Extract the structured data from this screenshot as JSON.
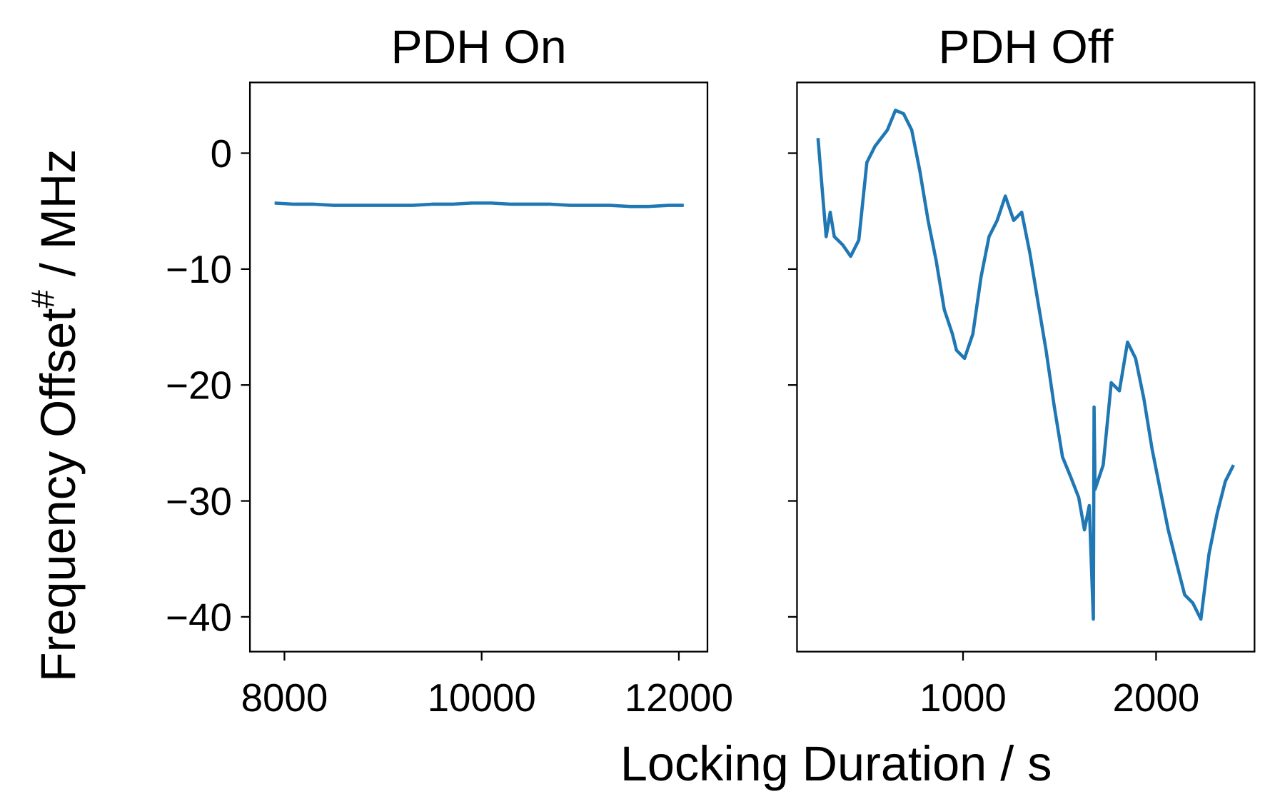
{
  "chart_data": [
    {
      "type": "line",
      "title": "PDH On",
      "color": "#1f77b4",
      "x": [
        7900,
        8100,
        8300,
        8500,
        8700,
        8900,
        9100,
        9300,
        9500,
        9700,
        9900,
        10100,
        10300,
        10500,
        10700,
        10900,
        11100,
        11300,
        11500,
        11700,
        11900,
        12050
      ],
      "series": [
        {
          "values": [
            -4.3,
            -4.4,
            -4.4,
            -4.5,
            -4.5,
            -4.5,
            -4.5,
            -4.5,
            -4.4,
            -4.4,
            -4.3,
            -4.3,
            -4.4,
            -4.4,
            -4.4,
            -4.5,
            -4.5,
            -4.5,
            -4.6,
            -4.6,
            -4.5,
            -4.5
          ]
        }
      ],
      "xlim": [
        7650,
        12290
      ],
      "ylim": [
        -43,
        6.1
      ],
      "xticks": [
        8000,
        10000,
        12000
      ],
      "yticks": [
        0,
        {
          "value": -10,
          "label": "−10"
        },
        {
          "value": -20,
          "label": "−20"
        },
        {
          "value": -30,
          "label": "−30"
        },
        {
          "value": -40,
          "label": "−40"
        }
      ],
      "show_yticklabels": true
    },
    {
      "type": "line",
      "title": "PDH Off",
      "color": "#1f77b4",
      "x": [
        249,
        270,
        291,
        312,
        333,
        376,
        418,
        460,
        502,
        544,
        608,
        650,
        692,
        734,
        776,
        819,
        861,
        903,
        945,
        966,
        1008,
        1051,
        1093,
        1135,
        1177,
        1219,
        1262,
        1304,
        1346,
        1388,
        1430,
        1473,
        1515,
        1557,
        1599,
        1629,
        1654,
        1675,
        1679,
        1684,
        1726,
        1768,
        1810,
        1852,
        1894,
        1937,
        1979,
        2021,
        2063,
        2105,
        2148,
        2190,
        2232,
        2274,
        2316,
        2359,
        2401
      ],
      "series": [
        {
          "values": [
            1.3,
            -3.0,
            -7.2,
            -5.1,
            -7.2,
            -7.9,
            -8.9,
            -7.5,
            -0.8,
            0.6,
            2.0,
            3.7,
            3.4,
            2.0,
            -1.5,
            -5.8,
            -9.3,
            -13.5,
            -15.6,
            -17.0,
            -17.7,
            -15.6,
            -10.7,
            -7.2,
            -5.8,
            -3.7,
            -5.8,
            -5.1,
            -8.6,
            -12.8,
            -17.0,
            -21.9,
            -26.2,
            -27.9,
            -29.7,
            -32.5,
            -30.4,
            -40.2,
            -21.9,
            -29.0,
            -26.9,
            -19.8,
            -20.5,
            -16.3,
            -17.7,
            -21.2,
            -25.5,
            -29.0,
            -32.5,
            -35.3,
            -38.1,
            -38.8,
            -40.2,
            -34.6,
            -31.1,
            -28.3,
            -26.9
          ]
        }
      ],
      "xlim": [
        140,
        2510
      ],
      "ylim": [
        -43,
        6.1
      ],
      "xticks": [
        1000,
        2000
      ],
      "yticks": [
        0,
        -10,
        -20,
        -30,
        -40
      ],
      "show_yticklabels": false
    }
  ],
  "xlabel": "Locking Duration / s",
  "ylabel_parts": [
    "Frequency Offset",
    "#",
    " / MHz"
  ]
}
